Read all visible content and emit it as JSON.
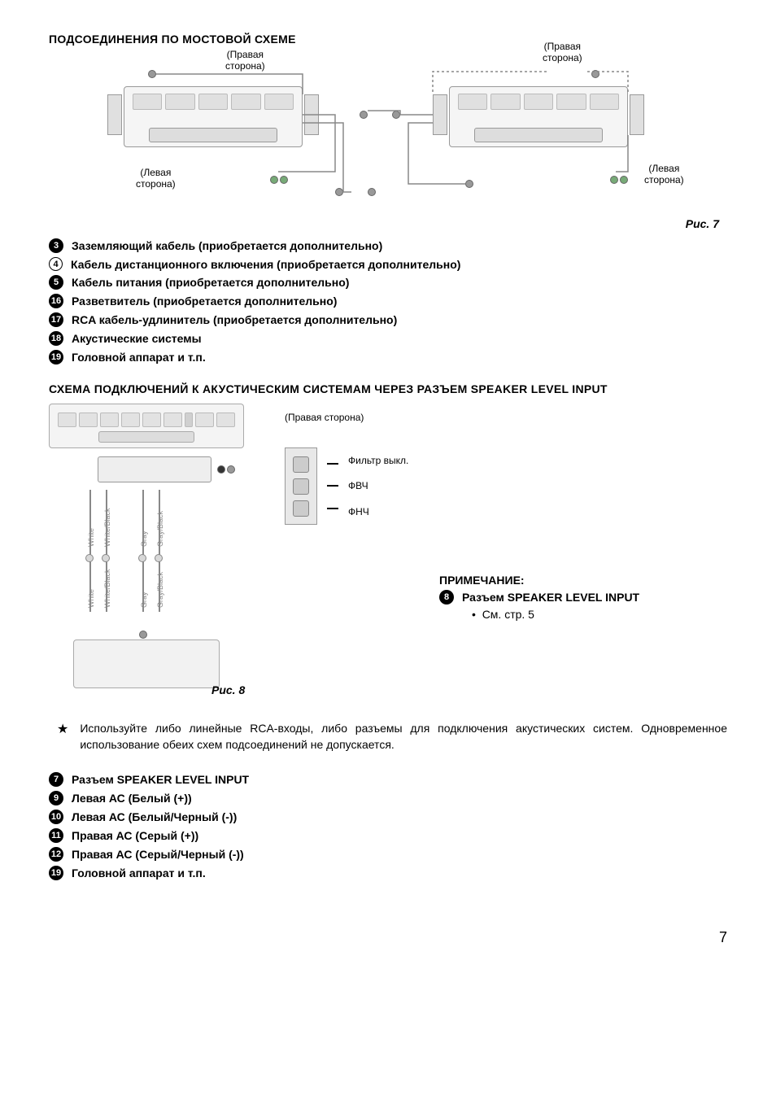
{
  "section1_title": "ПОДСОЕДИНЕНИЯ ПО МОСТОВОЙ СХЕМЕ",
  "fig7": {
    "caption": "Рис. 7",
    "label_right_top": "(Правая\nсторона)",
    "label_left_bottom": "(Левая\nсторона)",
    "label2_right_top": "(Правая\nсторона)",
    "label2_left_bottom": "(Левая\nсторона)"
  },
  "list1": [
    {
      "num": "3",
      "style": "solid",
      "text": "Заземляющий кабель (приобретается дополнительно)"
    },
    {
      "num": "4",
      "style": "outline",
      "text": "Кабель дистанционного включения (приобретается дополнительно)"
    },
    {
      "num": "5",
      "style": "solid",
      "text": "Кабель питания (приобретается дополнительно)"
    },
    {
      "num": "16",
      "style": "solid",
      "text": "Разветвитель (приобретается дополнительно)"
    },
    {
      "num": "17",
      "style": "solid",
      "text": "RCA кабель-удлинитель (приобретается дополнительно)"
    },
    {
      "num": "18",
      "style": "solid",
      "text": "Акустические системы"
    },
    {
      "num": "19",
      "style": "solid",
      "text": "Головной аппарат и т.п."
    }
  ],
  "section2_title": "СХЕМА ПОДКЛЮЧЕНИЙ К АКУСТИЧЕСКИМ СИСТЕМАМ ЧЕРЕЗ РАЗЪЕМ SPEAKER LEVEL INPUT",
  "fig8": {
    "caption": "Рис. 8",
    "right_side_label": "(Правая сторона)",
    "switch_labels": [
      "Фильтр выкл.",
      "ФВЧ",
      "ФНЧ"
    ],
    "wire_labels": [
      "White",
      "White/Black",
      "Gray",
      "Gray/Black",
      "White",
      "White/Black",
      "Gray",
      "Gray/Black"
    ]
  },
  "note": {
    "title": "ПРИМЕЧАНИЕ:",
    "num": "8",
    "text": "Разъем SPEAKER LEVEL INPUT",
    "bullet": "См. стр. 5"
  },
  "star_note": "Используйте либо линейные RCA-входы, либо разъемы для подключения акустических систем. Одновременное использование обеих схем подсоединений не допускается.",
  "list2": [
    {
      "num": "7",
      "style": "solid",
      "text": "Разъем SPEAKER LEVEL INPUT"
    },
    {
      "num": "9",
      "style": "solid",
      "text": "Левая АС (Белый (+))"
    },
    {
      "num": "10",
      "style": "solid",
      "text": "Левая АС (Белый/Черный (-))"
    },
    {
      "num": "11",
      "style": "solid",
      "text": "Правая АС (Серый (+))"
    },
    {
      "num": "12",
      "style": "solid",
      "text": "Правая АС (Серый/Черный (-))"
    },
    {
      "num": "19",
      "style": "solid",
      "text": "Головной аппарат и т.п."
    }
  ],
  "page_number": "7",
  "colors": {
    "text": "#000000",
    "bg": "#ffffff",
    "diagram_fill": "#f2f2f2",
    "diagram_border": "#999999",
    "circle_bg": "#000000",
    "circle_fg": "#ffffff"
  }
}
